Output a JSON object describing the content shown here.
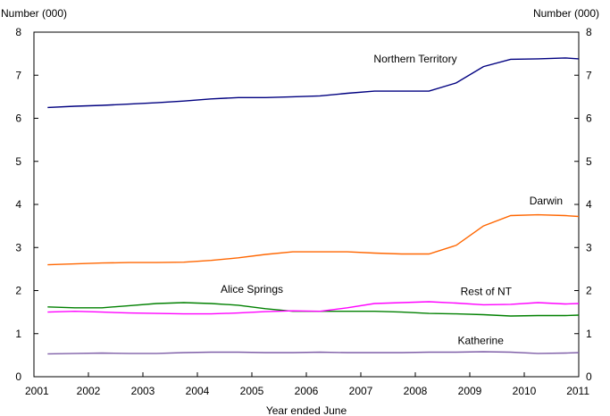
{
  "chart_data": {
    "type": "line",
    "title": "",
    "ylabel_left": "Number (000)",
    "ylabel_right": "Number (000)",
    "xlabel": "Year ended June",
    "xlim": [
      2001,
      2011
    ],
    "ylim": [
      0,
      8
    ],
    "grid": false,
    "x_ticks": [
      "2001",
      "2002",
      "2003",
      "2004",
      "2005",
      "2006",
      "2007",
      "2008",
      "2009",
      "2010",
      "2011"
    ],
    "y_ticks": [
      "0",
      "1",
      "2",
      "3",
      "4",
      "5",
      "6",
      "7",
      "8"
    ],
    "x": [
      2001.25,
      2001.75,
      2002.25,
      2002.75,
      2003.25,
      2003.75,
      2004.25,
      2004.75,
      2005.25,
      2005.75,
      2006.25,
      2006.75,
      2007.25,
      2007.75,
      2008.25,
      2008.75,
      2009.25,
      2009.75,
      2010.25,
      2010.75,
      2011.0
    ],
    "series": [
      {
        "name": "Northern Territory",
        "color": "#000080",
        "values": [
          6.25,
          6.28,
          6.3,
          6.33,
          6.36,
          6.4,
          6.45,
          6.48,
          6.48,
          6.5,
          6.52,
          6.58,
          6.63,
          6.63,
          6.63,
          6.82,
          7.2,
          7.37,
          7.38,
          7.4,
          7.38
        ]
      },
      {
        "name": "Darwin",
        "color": "#ff6600",
        "values": [
          2.6,
          2.62,
          2.64,
          2.65,
          2.65,
          2.66,
          2.7,
          2.76,
          2.84,
          2.9,
          2.9,
          2.9,
          2.87,
          2.85,
          2.85,
          3.05,
          3.5,
          3.74,
          3.76,
          3.74,
          3.72
        ]
      },
      {
        "name": "Alice Springs",
        "color": "#008000",
        "values": [
          1.62,
          1.6,
          1.6,
          1.65,
          1.7,
          1.72,
          1.7,
          1.66,
          1.58,
          1.52,
          1.52,
          1.52,
          1.52,
          1.5,
          1.47,
          1.46,
          1.44,
          1.41,
          1.42,
          1.42,
          1.43
        ]
      },
      {
        "name": "Rest of NT",
        "color": "#ff00ff",
        "values": [
          1.5,
          1.52,
          1.5,
          1.48,
          1.47,
          1.46,
          1.46,
          1.48,
          1.51,
          1.53,
          1.52,
          1.6,
          1.7,
          1.72,
          1.74,
          1.71,
          1.67,
          1.68,
          1.72,
          1.69,
          1.7
        ]
      },
      {
        "name": "Katherine",
        "color": "#7f5fa8",
        "values": [
          0.53,
          0.54,
          0.55,
          0.54,
          0.54,
          0.56,
          0.57,
          0.57,
          0.56,
          0.56,
          0.57,
          0.56,
          0.56,
          0.56,
          0.57,
          0.57,
          0.58,
          0.57,
          0.54,
          0.55,
          0.56
        ]
      }
    ],
    "annotations": [
      {
        "text": "Northern Territory",
        "x": 2008.0,
        "y": 7.3
      },
      {
        "text": "Darwin",
        "x": 2010.4,
        "y": 4.0
      },
      {
        "text": "Alice Springs",
        "x": 2005.0,
        "y": 1.95
      },
      {
        "text": "Rest of NT",
        "x": 2009.3,
        "y": 1.9
      },
      {
        "text": "Katherine",
        "x": 2009.2,
        "y": 0.76
      }
    ]
  }
}
